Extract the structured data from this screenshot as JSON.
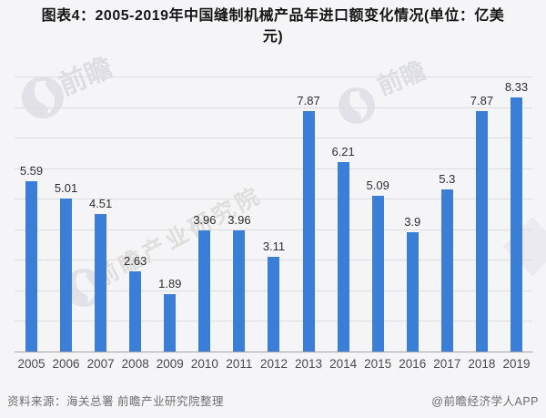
{
  "title": {
    "line1": "图表4：2005-2019年中国缝制机械产品年进口额变化情况(单位：亿美",
    "line2": "元)"
  },
  "chart_data": {
    "type": "bar",
    "title": "图表4：2005-2019年中国缝制机械产品年进口额变化情况(单位：亿美元)",
    "unit": "亿美元",
    "categories": [
      "2005",
      "2006",
      "2007",
      "2008",
      "2009",
      "2010",
      "2011",
      "2012",
      "2013",
      "2014",
      "2015",
      "2016",
      "2017",
      "2018",
      "2019"
    ],
    "values": [
      5.59,
      5.01,
      4.51,
      2.63,
      1.89,
      3.96,
      3.96,
      3.11,
      7.87,
      6.21,
      5.09,
      3.9,
      5.3,
      7.87,
      8.33
    ],
    "value_labels": [
      "5.59",
      "5.01",
      "4.51",
      "2.63",
      "1.89",
      "3.96",
      "3.96",
      "3.11",
      "7.87",
      "6.21",
      "5.09",
      "3.9",
      "5.3",
      "7.87",
      "8.33"
    ],
    "xlabel": "",
    "ylabel": "",
    "ylim": [
      0,
      9
    ],
    "grid": "horizontal gridlines every 1 unit, no y-axis tick labels",
    "legend": "none",
    "bar_color": "#3b7ed7"
  },
  "footer": {
    "source": "资料来源：海关总署 前瞻产业研究院整理",
    "credit": "@前瞻经济学人APP"
  },
  "watermark": {
    "brand": "前瞻",
    "diagonal": "前瞻产业研究院"
  }
}
